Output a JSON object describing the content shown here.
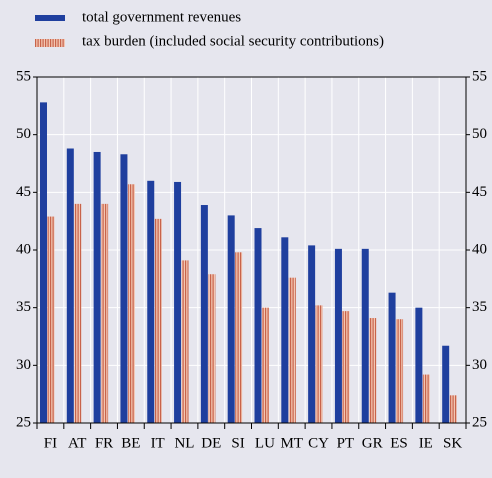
{
  "chart_data": {
    "type": "bar",
    "categories": [
      "FI",
      "AT",
      "FR",
      "BE",
      "IT",
      "NL",
      "DE",
      "SI",
      "LU",
      "MT",
      "CY",
      "PT",
      "GR",
      "ES",
      "IE",
      "SK"
    ],
    "series": [
      {
        "name": "total government revenues",
        "color": "#1f3f9e",
        "values": [
          52.8,
          48.8,
          48.5,
          48.3,
          46.0,
          45.9,
          43.9,
          43.0,
          41.9,
          41.1,
          40.4,
          40.1,
          40.1,
          36.3,
          35.0,
          31.7
        ]
      },
      {
        "name": "tax burden  (included social security contributions)",
        "color": "#e8a58a",
        "values": [
          42.9,
          44.0,
          44.0,
          45.7,
          42.7,
          39.1,
          37.9,
          39.8,
          35.0,
          37.6,
          35.2,
          34.7,
          34.1,
          34.0,
          29.2,
          27.4
        ]
      }
    ],
    "ylim": [
      25,
      55
    ],
    "yticks": [
      25,
      30,
      35,
      40,
      45,
      50,
      55
    ],
    "y2lim": [
      25,
      55
    ],
    "y2ticks": [
      25,
      30,
      35,
      40,
      45,
      50,
      55
    ],
    "grid": true
  }
}
